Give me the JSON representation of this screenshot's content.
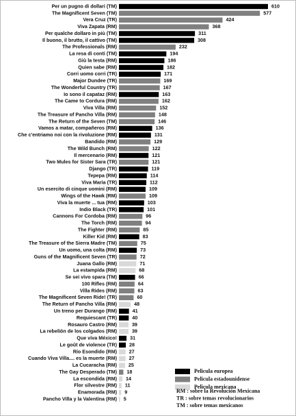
{
  "chart_data": {
    "type": "bar",
    "orientation": "horizontal",
    "categories": [
      "Per un pugno di dollari (TM)",
      "The Magnificent Seven (TM)",
      "Vera Cruz (TR)",
      "Viva Zapata (RM)",
      "Per qualche dollaro in più (TM)",
      "Il buono, il brutto, il cattivo (TM)",
      "The Professionals (RM)",
      "La resa di conti (TM)",
      "Giù la testa (RM)",
      "Quien sabe (RM)",
      "Corri uomo corri (TR)",
      "Major Dundee (TR)",
      "The Wonderful Country (TR)",
      "Io sono il capataz (RM)",
      "The Came to Cordura (RM)",
      "Viva Villa (RM)",
      "The Treasure of Pancho Villa (RM)",
      "The Return of the Seven (TM)",
      "Vamos a matar, compañeros (RM)",
      "Che c'entriamo noi con la rivoluzione (RM)",
      "Bandido (RM)",
      "The Wild Bunch (RM)",
      "Il mercenario (RM)",
      "Two Mules for Sister Sara (TR)",
      "Django (TR)",
      "Tepepa (RM)",
      "Viva Maria (TR)",
      "Un esercito di cinque uomini (RM)",
      "Wings of the Hawk (RM)",
      "Viva la muerte ... tua (RM)",
      "Indio Black (TR)",
      "Cannons For Cordoba (RM)",
      "The Torch (RM)",
      "The Fighter (RM)",
      "Killer Kid (RM)",
      "The Treasure of the Sierra Madre (TM)",
      "Un uomo, una colta (RM)",
      "Guns of the Magnificent Seven (TR)",
      "Juana Gallo (RM)",
      "La estampida (RM)",
      "Se sei vivo spara (TM)",
      "100 Rifles (RM)",
      "Villa Rides (RM)",
      "The Magnificent Seven Ride! (TR)",
      "The Return of Pancho Villa (RM)",
      "Un treno per Durango (RM)",
      "Requiescant (TR)",
      "Rosauro Castro (RM)",
      "La rebelión de los colgados (RM)",
      "Que viva México!",
      "Le goût de violence (TR)",
      "Río Esondido (RM)",
      "Cuando Viva Villa.... es la muerte (RM)",
      "La Cucaracha (RM)",
      "The Gay Desperado (TM)",
      "La escondida (RM)",
      "Flor silvestre (RM)",
      "Enamorada (RM)",
      "Pancho Villa y la Valentina (RM)"
    ],
    "values": [
      610,
      577,
      424,
      368,
      311,
      308,
      232,
      194,
      186,
      182,
      171,
      169,
      167,
      163,
      162,
      152,
      148,
      146,
      136,
      131,
      129,
      122,
      121,
      121,
      119,
      114,
      112,
      109,
      109,
      103,
      101,
      96,
      94,
      85,
      83,
      75,
      73,
      72,
      71,
      68,
      66,
      64,
      63,
      60,
      48,
      41,
      40,
      39,
      39,
      31,
      28,
      27,
      27,
      25,
      18,
      14,
      11,
      9,
      5
    ],
    "colors": [
      "#000000",
      "#808080",
      "#808080",
      "#808080",
      "#000000",
      "#000000",
      "#808080",
      "#000000",
      "#000000",
      "#000000",
      "#000000",
      "#808080",
      "#808080",
      "#000000",
      "#808080",
      "#808080",
      "#808080",
      "#808080",
      "#000000",
      "#000000",
      "#808080",
      "#808080",
      "#000000",
      "#808080",
      "#000000",
      "#000000",
      "#000000",
      "#000000",
      "#808080",
      "#000000",
      "#000000",
      "#808080",
      "#808080",
      "#808080",
      "#000000",
      "#808080",
      "#000000",
      "#808080",
      "#d9d9d9",
      "#d9d9d9",
      "#000000",
      "#808080",
      "#808080",
      "#808080",
      "#d9d9d9",
      "#000000",
      "#000000",
      "#d9d9d9",
      "#d9d9d9",
      "#000000",
      "#000000",
      "#d9d9d9",
      "#d9d9d9",
      "#d9d9d9",
      "#808080",
      "#d9d9d9",
      "#d9d9d9",
      "#d9d9d9",
      "#d9d9d9"
    ],
    "legend": [
      {
        "name": "Pelicula europea",
        "color": "#000000"
      },
      {
        "name": "Pelicula estadounidense",
        "color": "#808080"
      },
      {
        "name": "Pelicula mexicana",
        "color": "#d9d9d9"
      }
    ],
    "notes": [
      "RM : sobre la Revolución Mexicana",
      "TR : sobre temas revolucionarios",
      "TM : sobre temas mexicanos"
    ]
  }
}
